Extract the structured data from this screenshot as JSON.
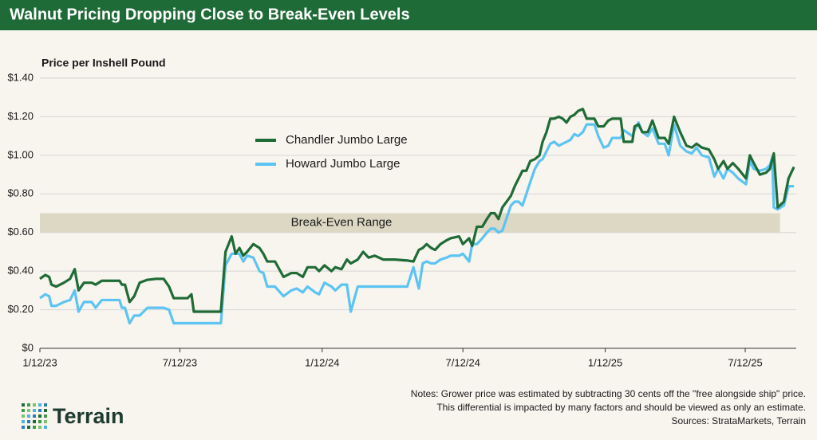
{
  "chart_data": {
    "type": "line",
    "title": "Walnut Pricing Dropping Close to Break-Even Levels",
    "y_label": "Price per Inshell Pound",
    "x": [
      "2023-01-12",
      "2023-01-19",
      "2023-01-24",
      "2023-01-27",
      "2023-02-02",
      "2023-02-12",
      "2023-02-20",
      "2023-02-26",
      "2023-03-03",
      "2023-03-10",
      "2023-03-20",
      "2023-03-25",
      "2023-04-02",
      "2023-04-15",
      "2023-04-25",
      "2023-04-28",
      "2023-05-02",
      "2023-05-08",
      "2023-05-14",
      "2023-05-21",
      "2023-05-31",
      "2023-06-11",
      "2023-06-21",
      "2023-06-28",
      "2023-07-04",
      "2023-07-17",
      "2023-07-22",
      "2023-07-27",
      "2023-07-30",
      "2023-08-17",
      "2023-09-03",
      "2023-09-09",
      "2023-09-17",
      "2023-09-22",
      "2023-09-27",
      "2023-10-02",
      "2023-10-07",
      "2023-10-15",
      "2023-10-23",
      "2023-10-28",
      "2023-11-02",
      "2023-11-12",
      "2023-11-23",
      "2023-12-03",
      "2023-12-10",
      "2023-12-18",
      "2023-12-24",
      "2024-01-03",
      "2024-01-08",
      "2024-01-15",
      "2024-01-24",
      "2024-01-29",
      "2024-02-06",
      "2024-02-13",
      "2024-02-18",
      "2024-02-27",
      "2024-03-05",
      "2024-03-12",
      "2024-03-20",
      "2024-03-31",
      "2024-04-15",
      "2024-05-01",
      "2024-05-09",
      "2024-05-16",
      "2024-05-21",
      "2024-05-26",
      "2024-06-01",
      "2024-06-06",
      "2024-06-13",
      "2024-06-21",
      "2024-06-26",
      "2024-07-07",
      "2024-07-12",
      "2024-07-20",
      "2024-07-24",
      "2024-07-30",
      "2024-08-06",
      "2024-08-12",
      "2024-08-17",
      "2024-08-22",
      "2024-08-27",
      "2024-09-01",
      "2024-09-12",
      "2024-09-17",
      "2024-09-22",
      "2024-09-27",
      "2024-10-02",
      "2024-10-07",
      "2024-10-13",
      "2024-10-19",
      "2024-10-23",
      "2024-10-28",
      "2024-11-02",
      "2024-11-07",
      "2024-11-13",
      "2024-11-18",
      "2024-11-23",
      "2024-11-28",
      "2024-12-03",
      "2024-12-08",
      "2024-12-14",
      "2024-12-19",
      "2024-12-29",
      "2025-01-03",
      "2025-01-10",
      "2025-01-16",
      "2025-01-21",
      "2025-02-01",
      "2025-02-05",
      "2025-02-16",
      "2025-02-19",
      "2025-02-24",
      "2025-03-01",
      "2025-03-08",
      "2025-03-14",
      "2025-03-22",
      "2025-03-30",
      "2025-04-04",
      "2025-04-11",
      "2025-04-19",
      "2025-04-27",
      "2025-05-04",
      "2025-05-10",
      "2025-05-17",
      "2025-05-26",
      "2025-06-02",
      "2025-06-07",
      "2025-06-14",
      "2025-06-19",
      "2025-06-26",
      "2025-07-03",
      "2025-07-13",
      "2025-07-18",
      "2025-07-23",
      "2025-07-31",
      "2025-08-08",
      "2025-08-13",
      "2025-08-16",
      "2025-08-18",
      "2025-08-23",
      "2025-08-31",
      "2025-09-06",
      "2025-09-13"
    ],
    "series": [
      {
        "name": "Chandler Jumbo Large",
        "color": "#1f6b36",
        "values": [
          0.36,
          0.38,
          0.37,
          0.33,
          0.32,
          0.34,
          0.36,
          0.41,
          0.3,
          0.34,
          0.34,
          0.33,
          0.35,
          0.35,
          0.35,
          0.33,
          0.33,
          0.24,
          0.27,
          0.34,
          0.355,
          0.36,
          0.36,
          0.32,
          0.26,
          0.26,
          0.26,
          0.28,
          0.19,
          0.19,
          0.19,
          0.5,
          0.58,
          0.49,
          0.52,
          0.48,
          0.5,
          0.54,
          0.52,
          0.49,
          0.45,
          0.45,
          0.37,
          0.39,
          0.39,
          0.37,
          0.42,
          0.42,
          0.4,
          0.43,
          0.4,
          0.42,
          0.41,
          0.46,
          0.44,
          0.46,
          0.5,
          0.47,
          0.48,
          0.46,
          0.46,
          0.455,
          0.45,
          0.51,
          0.52,
          0.54,
          0.52,
          0.51,
          0.54,
          0.56,
          0.57,
          0.58,
          0.54,
          0.57,
          0.53,
          0.63,
          0.63,
          0.67,
          0.7,
          0.7,
          0.67,
          0.73,
          0.79,
          0.84,
          0.88,
          0.92,
          0.92,
          0.97,
          0.98,
          1.0,
          1.07,
          1.12,
          1.19,
          1.19,
          1.2,
          1.19,
          1.17,
          1.2,
          1.21,
          1.23,
          1.24,
          1.19,
          1.19,
          1.15,
          1.15,
          1.18,
          1.19,
          1.19,
          1.07,
          1.07,
          1.15,
          1.16,
          1.12,
          1.12,
          1.18,
          1.09,
          1.09,
          1.06,
          1.2,
          1.12,
          1.05,
          1.04,
          1.06,
          1.04,
          1.03,
          0.98,
          0.93,
          0.97,
          0.93,
          0.96,
          0.93,
          0.88,
          1.0,
          0.96,
          0.9,
          0.91,
          0.93,
          0.98,
          1.01,
          0.73,
          0.76,
          0.88,
          0.94
        ]
      },
      {
        "name": "Howard Jumbo Large",
        "color": "#5cc4f2",
        "values": [
          0.26,
          0.28,
          0.27,
          0.22,
          0.22,
          0.24,
          0.25,
          0.3,
          0.19,
          0.24,
          0.24,
          0.21,
          0.25,
          0.25,
          0.25,
          0.21,
          0.21,
          0.13,
          0.17,
          0.17,
          0.21,
          0.21,
          0.21,
          0.2,
          0.13,
          0.13,
          0.13,
          0.13,
          0.13,
          0.13,
          0.13,
          0.43,
          0.49,
          0.49,
          0.49,
          0.45,
          0.48,
          0.47,
          0.4,
          0.39,
          0.32,
          0.32,
          0.27,
          0.3,
          0.31,
          0.29,
          0.32,
          0.29,
          0.28,
          0.34,
          0.32,
          0.3,
          0.33,
          0.33,
          0.19,
          0.32,
          0.32,
          0.32,
          0.32,
          0.32,
          0.32,
          0.32,
          0.42,
          0.31,
          0.44,
          0.45,
          0.44,
          0.44,
          0.46,
          0.47,
          0.48,
          0.48,
          0.49,
          0.45,
          0.54,
          0.54,
          0.57,
          0.6,
          0.62,
          0.62,
          0.6,
          0.61,
          0.74,
          0.76,
          0.76,
          0.74,
          0.8,
          0.86,
          0.93,
          0.97,
          0.98,
          1.02,
          1.06,
          1.07,
          1.05,
          1.06,
          1.07,
          1.08,
          1.11,
          1.1,
          1.12,
          1.16,
          1.16,
          1.1,
          1.04,
          1.05,
          1.09,
          1.09,
          1.13,
          1.1,
          1.13,
          1.17,
          1.12,
          1.1,
          1.14,
          1.06,
          1.06,
          1.0,
          1.16,
          1.05,
          1.02,
          1.01,
          1.04,
          1.0,
          0.99,
          0.89,
          0.93,
          0.88,
          0.93,
          0.91,
          0.88,
          0.85,
          0.97,
          0.93,
          0.92,
          0.93,
          0.95,
          0.99,
          0.73,
          0.72,
          0.74,
          0.84,
          0.84
        ]
      }
    ],
    "xlim": [
      "2023-01-12",
      "2025-09-16"
    ],
    "xticks": [
      {
        "value": "2023-01-12",
        "label": "1/12/23"
      },
      {
        "value": "2023-07-12",
        "label": "7/12/23"
      },
      {
        "value": "2024-01-12",
        "label": "1/12/24"
      },
      {
        "value": "2024-07-12",
        "label": "7/12/24"
      },
      {
        "value": "2025-01-12",
        "label": "1/12/25"
      },
      {
        "value": "2025-07-12",
        "label": "7/12/25"
      }
    ],
    "ylim": [
      0,
      1.4
    ],
    "yticks": [
      {
        "value": 0,
        "label": "$0"
      },
      {
        "value": 0.2,
        "label": "$0.20"
      },
      {
        "value": 0.4,
        "label": "$0.40"
      },
      {
        "value": 0.6,
        "label": "$0.60"
      },
      {
        "value": 0.8,
        "label": "$0.80"
      },
      {
        "value": 1.0,
        "label": "$1.00"
      },
      {
        "value": 1.2,
        "label": "$1.20"
      },
      {
        "value": 1.4,
        "label": "$1.40"
      }
    ],
    "grid": true,
    "break_even_range": {
      "label": "Break-Even Range",
      "values": [
        0.6,
        0.7
      ],
      "x": [
        "2023-01-12",
        "2025-08-26"
      ],
      "color": "#dcd8c3"
    },
    "notes": [
      "Notes: Grower price was estimated by subtracting 30 cents off the \"free alongside ship\" price.",
      "This differential is impacted by many factors and should be viewed as only an estimate.",
      "Sources: StrataMarkets, Terrain"
    ],
    "logo_text": "Terrain"
  }
}
